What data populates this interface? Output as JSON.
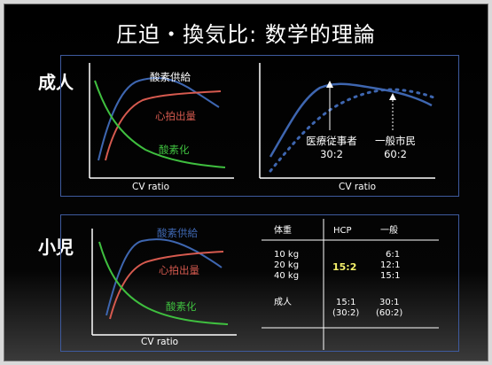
{
  "title": "圧迫・換気比: 数学的理論",
  "colors": {
    "o2_supply": "#3e66b0",
    "cardiac_output": "#d65a4f",
    "oxygenation": "#3fbf3f",
    "panel_border": "#3e5a9e",
    "highlight": "#f4f06a"
  },
  "adult": {
    "label": "成人",
    "left_chart": {
      "o2_supply_label": "酸素供給",
      "cardiac_output_label": "心拍出量",
      "oxygenation_label": "酸素化",
      "xlabel": "CV ratio"
    },
    "right_chart": {
      "medical_label_line1": "医療従事者",
      "medical_label_line2": "30:2",
      "public_label_line1": "一般市民",
      "public_label_line2": "60:2",
      "xlabel": "CV ratio"
    }
  },
  "child": {
    "label": "小児",
    "chart": {
      "o2_supply_label": "酸素供給",
      "cardiac_output_label": "心拍出量",
      "oxygenation_label": "酸素化",
      "xlabel": "CV ratio"
    },
    "table": {
      "headers": [
        "体重",
        "HCP",
        "一般"
      ],
      "weights": [
        "10 kg",
        "20 kg",
        "40 kg"
      ],
      "hcp_value": "15:2",
      "general_values": [
        "6:1",
        "12:1",
        "15:1"
      ],
      "adult_label": "成人",
      "adult_hcp": [
        "15:1",
        "(30:2)"
      ],
      "adult_general": [
        "30:1",
        "(60:2)"
      ]
    }
  }
}
